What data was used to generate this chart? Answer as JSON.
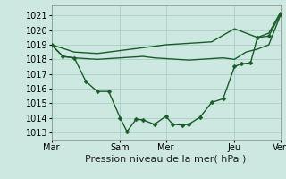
{
  "background_color": "#cce8e0",
  "grid_color": "#aacec6",
  "line_color": "#1a5c28",
  "marker_color": "#1a5c28",
  "xlabel": "Pression niveau de la mer( hPa )",
  "ylim": [
    1012.5,
    1021.7
  ],
  "yticks": [
    1013,
    1014,
    1015,
    1016,
    1017,
    1018,
    1019,
    1020,
    1021
  ],
  "xtick_labels": [
    "Mar",
    "Sam",
    "Mer",
    "Jeu",
    "Ven"
  ],
  "xtick_positions": [
    0,
    3,
    5,
    8,
    10
  ],
  "x_total": 10,
  "line_smooth_x": [
    0,
    1,
    2,
    3,
    4,
    5,
    6,
    7,
    8,
    9,
    9.5,
    10
  ],
  "line_smooth_y": [
    1019.0,
    1018.5,
    1018.4,
    1018.6,
    1018.8,
    1019.0,
    1019.1,
    1019.2,
    1020.1,
    1019.5,
    1019.8,
    1021.2
  ],
  "line_mid_x": [
    0,
    0.5,
    1,
    1.5,
    2,
    2.5,
    3,
    3.5,
    4,
    4.5,
    5,
    5.5,
    6,
    6.5,
    7,
    7.5,
    8,
    8.5,
    9,
    9.5,
    10
  ],
  "line_mid_y": [
    1019.0,
    1018.2,
    1018.1,
    1018.05,
    1018.0,
    1018.05,
    1018.1,
    1018.15,
    1018.2,
    1018.1,
    1018.05,
    1018.0,
    1017.95,
    1018.0,
    1018.05,
    1018.1,
    1018.0,
    1018.5,
    1018.7,
    1019.0,
    1021.0
  ],
  "line_jagged_x": [
    0,
    0.5,
    1,
    1.5,
    2,
    2.5,
    3,
    3.3,
    3.7,
    4,
    4.5,
    5,
    5.3,
    5.7,
    6,
    6.5,
    7,
    7.5,
    8,
    8.3,
    8.7,
    9,
    9.5,
    10
  ],
  "line_jagged_y": [
    1019.0,
    1018.2,
    1018.1,
    1016.5,
    1015.8,
    1015.8,
    1014.0,
    1013.05,
    1013.9,
    1013.85,
    1013.55,
    1014.1,
    1013.55,
    1013.5,
    1013.55,
    1014.05,
    1015.05,
    1015.3,
    1017.5,
    1017.7,
    1017.75,
    1019.5,
    1019.6,
    1021.1
  ],
  "xlabel_fontsize": 8,
  "tick_fontsize": 7,
  "linewidth": 1.0,
  "markersize": 2.5
}
